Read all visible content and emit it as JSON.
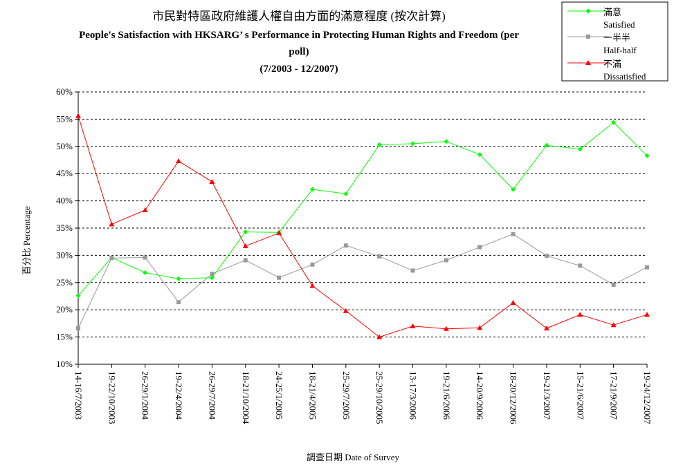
{
  "chart_data": {
    "type": "line",
    "title": "市民對特區政府維護人權自由方面的滿意程度 (按次計算)",
    "subtitle_line1": "People's Satisfaction with HKSARG’ s Performance in Protecting Human Rights and Freedom (per",
    "subtitle_line2": "poll)",
    "subtitle_line3": "(7/2003 - 12/2007)",
    "xlabel": "調查日期 Date of Survey",
    "ylabel": "百分比 Percentage",
    "ylim": [
      10,
      60
    ],
    "y_ticks": [
      "10%",
      "15%",
      "20%",
      "25%",
      "30%",
      "35%",
      "40%",
      "45%",
      "50%",
      "55%",
      "60%"
    ],
    "grid": "horizontal-dashed",
    "legend_position": "top-right",
    "categories": [
      "14-16/7/2003",
      "19-22/10/2003",
      "26-29/1/2004",
      "19-22/4/2004",
      "26-29/7/2004",
      "18-21/10/2004",
      "24-25/1/2005",
      "18-21/4/2005",
      "25-29/7/2005",
      "25-29/10/2005",
      "13-17/3/2006",
      "19-21/6/2006",
      "14-20/9/2006",
      "18-20/12/2006",
      "19-21/3/2007",
      "15-21/6/2007",
      "17-21/9/2007",
      "19-24/12/2007"
    ],
    "series": [
      {
        "name": "滿意",
        "name_en": "Satisfied",
        "color": "#00ff00",
        "marker": "diamond",
        "values": [
          22.6,
          29.6,
          26.8,
          25.7,
          25.9,
          34.3,
          34.2,
          42.1,
          41.3,
          50.3,
          50.5,
          50.9,
          48.5,
          42.1,
          50.2,
          49.5,
          54.4,
          48.3
        ]
      },
      {
        "name": "一半半",
        "name_en": "Half-half",
        "color": "#999999",
        "marker": "square",
        "values": [
          16.6,
          29.5,
          29.6,
          21.4,
          26.6,
          29.1,
          25.9,
          28.3,
          31.8,
          29.8,
          27.2,
          29.1,
          31.5,
          33.9,
          29.9,
          28.1,
          24.6,
          27.8
        ]
      },
      {
        "name": "不滿",
        "name_en": "Dissatisfied",
        "color": "#ff0000",
        "marker": "triangle",
        "values": [
          55.6,
          35.7,
          38.3,
          47.3,
          43.5,
          31.7,
          34.1,
          24.4,
          19.8,
          15.0,
          17.0,
          16.5,
          16.7,
          21.3,
          16.6,
          19.1,
          17.2,
          19.1
        ]
      }
    ]
  }
}
